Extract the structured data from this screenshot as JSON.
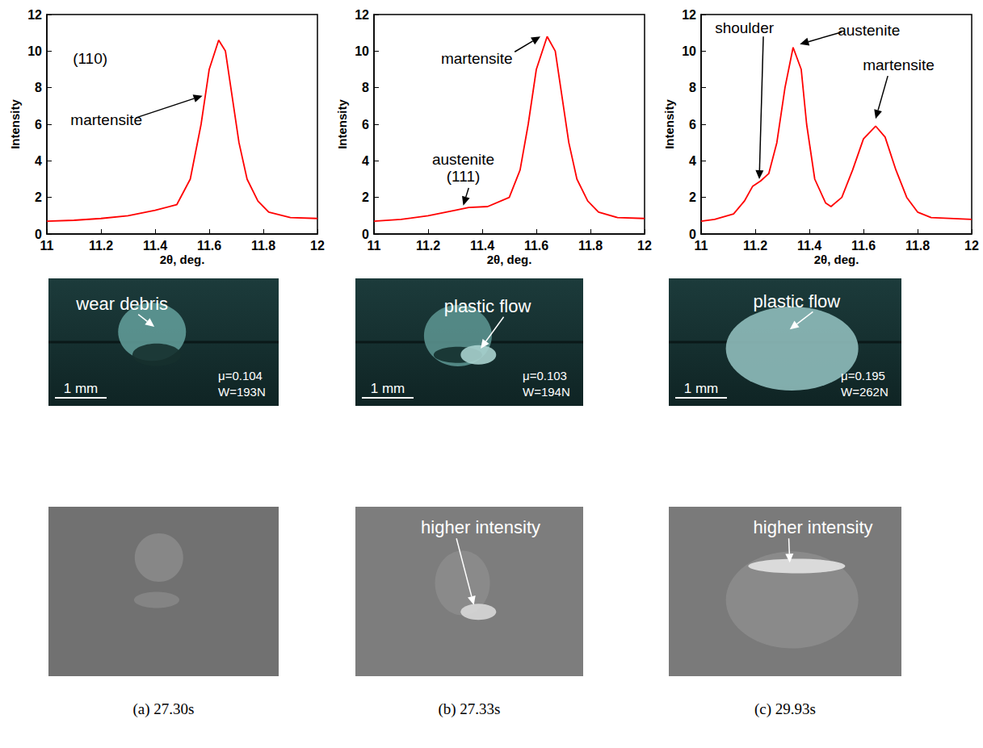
{
  "chart_data": [
    {
      "type": "line",
      "x_label": "2θ, deg.",
      "y_label": "Intensity",
      "xlim": [
        11,
        12
      ],
      "ylim": [
        0,
        12
      ],
      "xticks": [
        11,
        11.2,
        11.4,
        11.6,
        11.8,
        12
      ],
      "yticks": [
        0,
        2,
        4,
        6,
        8,
        10,
        12
      ],
      "annotations": [
        "(110)",
        "martensite"
      ],
      "color": "#ff0000",
      "x": [
        11,
        11.1,
        11.2,
        11.3,
        11.4,
        11.48,
        11.53,
        11.57,
        11.6,
        11.635,
        11.66,
        11.68,
        11.71,
        11.74,
        11.78,
        11.82,
        11.9,
        12
      ],
      "values": [
        0.7,
        0.75,
        0.85,
        1.0,
        1.3,
        1.6,
        3.0,
        6.0,
        9.0,
        10.6,
        10.0,
        8.0,
        5.0,
        3.0,
        1.8,
        1.2,
        0.9,
        0.85
      ]
    },
    {
      "type": "line",
      "x_label": "2θ, deg.",
      "y_label": "Intensity",
      "xlim": [
        11,
        12
      ],
      "ylim": [
        0,
        12
      ],
      "xticks": [
        11,
        11.2,
        11.4,
        11.6,
        11.8,
        12
      ],
      "yticks": [
        0,
        2,
        4,
        6,
        8,
        10,
        12
      ],
      "annotations": [
        "martensite",
        "austenite (111)"
      ],
      "color": "#ff0000",
      "x": [
        11,
        11.1,
        11.2,
        11.3,
        11.35,
        11.42,
        11.5,
        11.54,
        11.57,
        11.6,
        11.64,
        11.67,
        11.69,
        11.72,
        11.75,
        11.79,
        11.83,
        11.9,
        12
      ],
      "values": [
        0.7,
        0.8,
        1.0,
        1.3,
        1.45,
        1.5,
        2.0,
        3.5,
        6.0,
        9.0,
        10.8,
        10.0,
        8.0,
        5.0,
        3.0,
        1.8,
        1.2,
        0.9,
        0.85
      ]
    },
    {
      "type": "line",
      "x_label": "2θ, deg.",
      "y_label": "Intensity",
      "xlim": [
        11,
        12
      ],
      "ylim": [
        0,
        12
      ],
      "xticks": [
        11,
        11.2,
        11.4,
        11.6,
        11.8,
        12
      ],
      "yticks": [
        0,
        2,
        4,
        6,
        8,
        10,
        12
      ],
      "annotations": [
        "shoulder",
        "austenite",
        "martensite"
      ],
      "color": "#ff0000",
      "x": [
        11,
        11.05,
        11.12,
        11.16,
        11.19,
        11.22,
        11.25,
        11.28,
        11.31,
        11.34,
        11.37,
        11.39,
        11.42,
        11.46,
        11.48,
        11.52,
        11.56,
        11.6,
        11.645,
        11.68,
        11.72,
        11.76,
        11.8,
        11.85,
        12
      ],
      "values": [
        0.7,
        0.8,
        1.1,
        1.8,
        2.6,
        2.9,
        3.3,
        5.0,
        8.0,
        10.2,
        9.0,
        6.0,
        3.0,
        1.7,
        1.5,
        2.0,
        3.5,
        5.2,
        5.9,
        5.3,
        3.5,
        2.0,
        1.2,
        0.9,
        0.8
      ]
    }
  ],
  "photos": [
    {
      "label": "wear debris",
      "scale": "1 mm",
      "friction": "μ=0.104",
      "load": "W=193N"
    },
    {
      "label": "plastic flow",
      "scale": "1 mm",
      "friction": "μ=0.103",
      "load": "W=194N"
    },
    {
      "label": "plastic flow",
      "scale": "1 mm",
      "friction": "μ=0.195",
      "load": "W=262N"
    }
  ],
  "intensity_images": [
    {
      "labels": []
    },
    {
      "labels": [
        "higher intensity"
      ]
    },
    {
      "labels": [
        "higher intensity"
      ]
    }
  ],
  "captions": [
    "(a) 27.30s",
    "(b) 27.33s",
    "(c) 29.93s"
  ]
}
